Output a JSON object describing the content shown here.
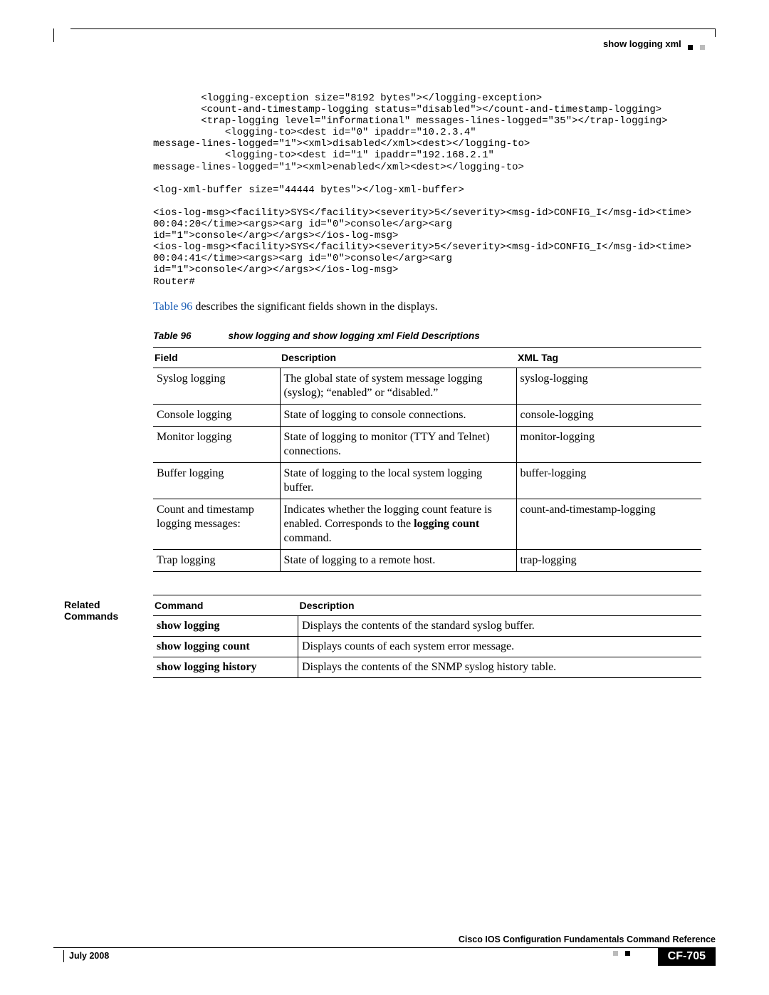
{
  "header": {
    "command": "show logging xml"
  },
  "code": "        <logging-exception size=\"8192 bytes\"></logging-exception>\n        <count-and-timestamp-logging status=\"disabled\"></count-and-timestamp-logging>\n        <trap-logging level=\"informational\" messages-lines-logged=\"35\"></trap-logging>\n            <logging-to><dest id=\"0\" ipaddr=\"10.2.3.4\"\nmessage-lines-logged=\"1\"><xml>disabled</xml><dest></logging-to>\n            <logging-to><dest id=\"1\" ipaddr=\"192.168.2.1\"\nmessage-lines-logged=\"1\"><xml>enabled</xml><dest></logging-to>\n\n<log-xml-buffer size=\"44444 bytes\"></log-xml-buffer>\n\n<ios-log-msg><facility>SYS</facility><severity>5</severity><msg-id>CONFIG_I</msg-id><time>\n00:04:20</time><args><arg id=\"0\">console</arg><arg\nid=\"1\">console</arg></args></ios-log-msg>\n<ios-log-msg><facility>SYS</facility><severity>5</severity><msg-id>CONFIG_I</msg-id><time>\n00:04:41</time><args><arg id=\"0\">console</arg><arg\nid=\"1\">console</arg></args></ios-log-msg>\nRouter#",
  "para": {
    "link": "Table 96",
    "rest": " describes the significant fields shown in the displays."
  },
  "table96": {
    "caption_num": "Table 96",
    "caption_title": "show logging and show logging xml Field Descriptions",
    "headers": {
      "field": "Field",
      "desc": "Description",
      "xml": "XML Tag"
    },
    "rows": [
      {
        "field": "Syslog logging",
        "desc": "The global state of system message logging (syslog); “enabled” or “disabled.”",
        "xml": "syslog-logging"
      },
      {
        "field": "Console logging",
        "desc": "State of logging to console connections.",
        "xml": "console-logging"
      },
      {
        "field": "Monitor logging",
        "desc": "State of logging to monitor (TTY and Telnet) connections.",
        "xml": "monitor-logging"
      },
      {
        "field": "Buffer logging",
        "desc": "State of logging to the local system logging buffer.",
        "xml": "buffer-logging"
      },
      {
        "field": "Count and timestamp logging messages:",
        "desc_pre": "Indicates whether the logging count feature is enabled. Corresponds to the ",
        "desc_bold": "logging count",
        "desc_post": " command.",
        "xml": "count-and-timestamp-logging"
      },
      {
        "field": "Trap logging",
        "desc": "State of logging to a remote host.",
        "xml": "trap-logging"
      }
    ]
  },
  "related": {
    "label": "Related Commands",
    "headers": {
      "cmd": "Command",
      "desc": "Description"
    },
    "rows": [
      {
        "cmd": "show logging",
        "desc": "Displays the contents of the standard syslog buffer."
      },
      {
        "cmd": "show logging count",
        "desc": "Displays counts of each system error message."
      },
      {
        "cmd": "show logging history",
        "desc": "Displays the contents of the SNMP syslog history table."
      }
    ]
  },
  "footer": {
    "book": "Cisco IOS Configuration Fundamentals Command Reference",
    "date": "July 2008",
    "page": "CF-705"
  }
}
